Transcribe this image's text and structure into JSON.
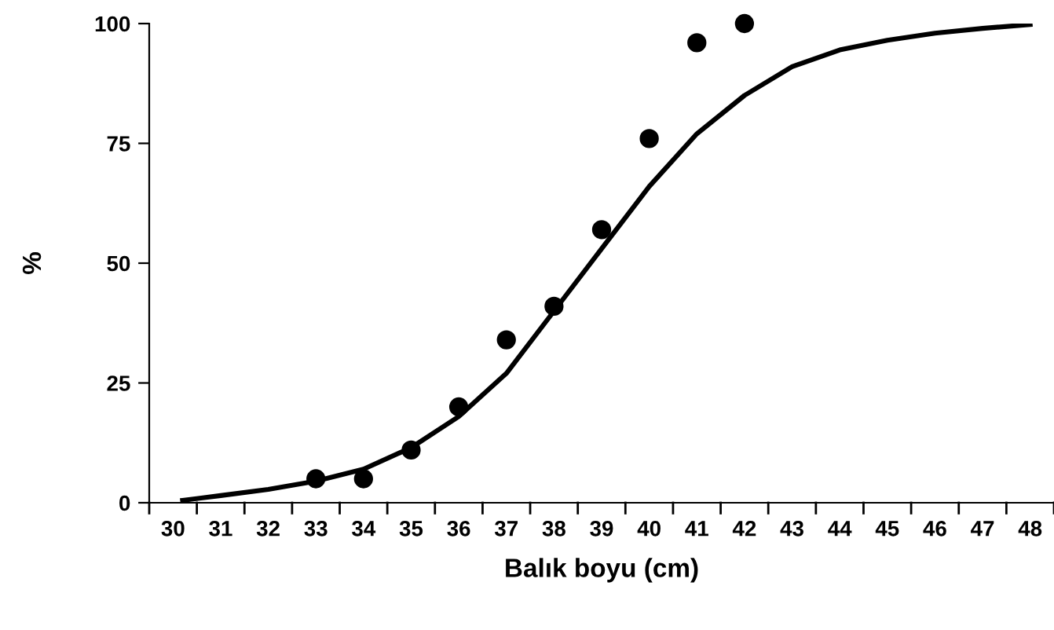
{
  "chart_data": {
    "type": "scatter",
    "xlabel": "Balık boyu (cm)",
    "ylabel": "%",
    "xlim": [
      29.5,
      48.5
    ],
    "xticks": [
      30,
      31,
      32,
      33,
      34,
      35,
      36,
      37,
      38,
      39,
      40,
      41,
      42,
      43,
      44,
      45,
      46,
      47,
      48
    ],
    "ylim": [
      0,
      100
    ],
    "yticks": [
      0,
      25,
      50,
      75,
      100
    ],
    "grid": false,
    "legend": false,
    "series": [
      {
        "color": "#000000",
        "marker": "circle",
        "x": [
          33,
          34,
          35,
          36,
          37,
          38,
          39,
          40,
          41,
          42
        ],
        "values": [
          5,
          5,
          11,
          20,
          34,
          41,
          57,
          76,
          96,
          100
        ]
      },
      {
        "type": "line",
        "color": "#000000",
        "line_style": "solid",
        "x": [
          30.2,
          31,
          32,
          33,
          34,
          35,
          36,
          37,
          38,
          39,
          40,
          41,
          42,
          43,
          44,
          45,
          46,
          47,
          48
        ],
        "values": [
          0.5,
          1.5,
          2.8,
          4.5,
          7,
          11.5,
          18,
          27,
          40,
          53,
          66,
          77,
          85,
          91,
          94.5,
          96.5,
          98,
          99,
          99.8
        ]
      }
    ]
  }
}
